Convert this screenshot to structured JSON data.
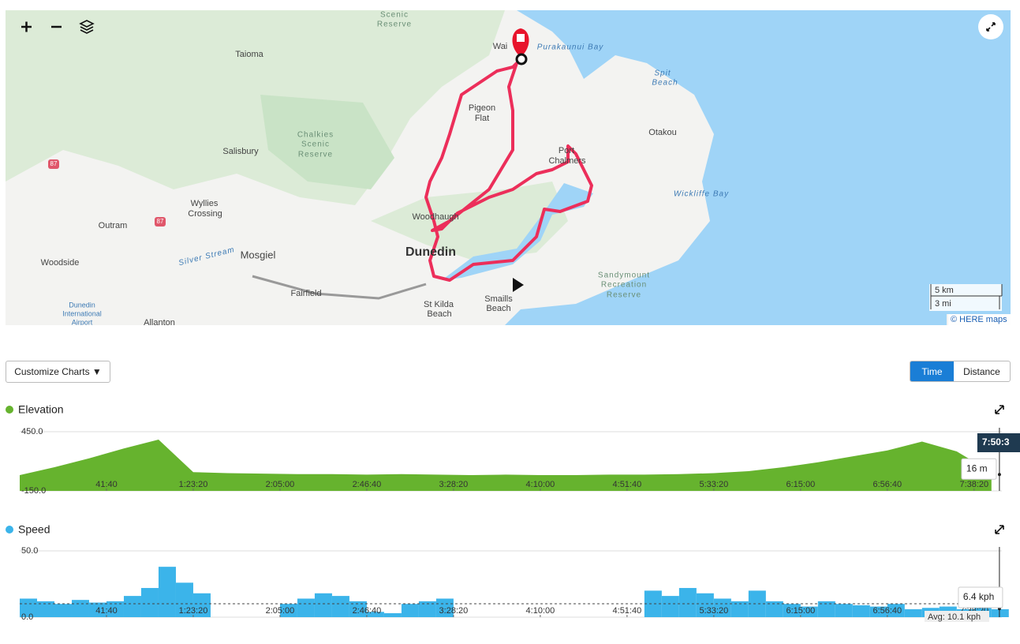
{
  "map": {
    "labels": [
      "Scenic",
      "Reserve",
      "Taioma",
      "Wai",
      "Purakaunui Bay",
      "Spit",
      "Beach",
      "Pigeon",
      "Flat",
      "Otakou",
      "Chalkies",
      "Scenic",
      "Reserve",
      "Salisbury",
      "87",
      "87",
      "Port",
      "Chalmers",
      "Wickliffe Bay",
      "Wyllies",
      "Crossing",
      "Outram",
      "Woodhaugh",
      "Silver Stream",
      "Mosgiel",
      "Dunedin",
      "Woodside",
      "Sandymount",
      "Recreation",
      "Reserve",
      "Fairfield",
      "Dunedin",
      "International",
      "Airport",
      "St Kilda",
      "Beach",
      "Smaills",
      "Beach",
      "Allanton"
    ],
    "scale": [
      "5 km",
      "3 mi"
    ],
    "attribution": "© HERE maps"
  },
  "toolbar": {
    "customize": "Customize Charts ▼",
    "toggle": [
      "Time",
      "Distance"
    ]
  },
  "charts": [
    {
      "type": "area",
      "title": "Elevation",
      "color": "#66b32e",
      "x": [
        0,
        1000,
        2000,
        3000,
        4000,
        5000,
        6000,
        7000,
        8000,
        9000,
        10000,
        11000,
        12000,
        13000,
        14000,
        15000,
        16000,
        17000,
        18000,
        19000,
        20000,
        21000,
        22000,
        23000,
        24000,
        25000,
        26000,
        27000,
        28000
      ],
      "values": [
        10,
        90,
        180,
        280,
        370,
        40,
        30,
        25,
        20,
        20,
        15,
        20,
        15,
        10,
        15,
        10,
        10,
        15,
        15,
        20,
        30,
        50,
        90,
        140,
        200,
        260,
        350,
        250,
        40
      ],
      "xlim": [
        0,
        28300
      ],
      "ylim": [
        -150,
        450
      ],
      "yticks": [
        {
          "value": 450,
          "label": "450.0"
        },
        {
          "value": -150,
          "label": "-150.0"
        }
      ],
      "xticks": [
        {
          "value": 2500,
          "label": "41:40"
        },
        {
          "value": 5000,
          "label": "1:23:20"
        },
        {
          "value": 7500,
          "label": "2:05:00"
        },
        {
          "value": 10000,
          "label": "2:46:40"
        },
        {
          "value": 12500,
          "label": "3:28:20"
        },
        {
          "value": 15000,
          "label": "4:10:00"
        },
        {
          "value": 17500,
          "label": "4:51:40"
        },
        {
          "value": 20000,
          "label": "5:33:20"
        },
        {
          "value": 22500,
          "label": "6:15:00"
        },
        {
          "value": 25000,
          "label": "6:56:40"
        },
        {
          "value": 27500,
          "label": "7:38:20"
        }
      ],
      "cursor": {
        "value": 28230,
        "label": "7:50:3"
      },
      "tooltip": {
        "value": 16,
        "label": "16 m"
      }
    },
    {
      "type": "bar",
      "title": "Speed",
      "color": "#3bb4ea",
      "x": [
        0,
        500,
        1000,
        1500,
        2000,
        2500,
        3000,
        3500,
        4000,
        4500,
        5000,
        5500,
        6000,
        6500,
        7000,
        7500,
        8000,
        8500,
        9000,
        9500,
        10000,
        10500,
        11000,
        11500,
        12000,
        12500,
        13000,
        13500,
        14000,
        14500,
        15000,
        15500,
        16000,
        16500,
        17000,
        17500,
        18000,
        18500,
        19000,
        19500,
        20000,
        20500,
        21000,
        21500,
        22000,
        22500,
        23000,
        23500,
        24000,
        24500,
        25000,
        25500,
        26000,
        26500,
        27000,
        27500,
        28000
      ],
      "values": [
        14,
        12,
        10,
        13,
        11,
        12,
        16,
        22,
        38,
        26,
        18,
        0,
        0,
        0,
        0,
        10,
        14,
        18,
        16,
        12,
        4,
        3,
        10,
        12,
        14,
        0,
        0,
        0,
        0,
        0,
        0,
        0,
        0,
        0,
        0,
        0,
        20,
        16,
        22,
        18,
        14,
        12,
        20,
        12,
        10,
        8,
        12,
        10,
        9,
        8,
        10,
        6,
        7,
        8,
        6,
        12,
        6
      ],
      "xlim": [
        0,
        28300
      ],
      "ylim": [
        0,
        50
      ],
      "yticks": [
        {
          "value": 50,
          "label": "50.0"
        },
        {
          "value": 0,
          "label": "0.0"
        }
      ],
      "xticks": [
        {
          "value": 2500,
          "label": "41:40"
        },
        {
          "value": 5000,
          "label": "1:23:20"
        },
        {
          "value": 7500,
          "label": "2:05:00"
        },
        {
          "value": 10000,
          "label": "2:46:40"
        },
        {
          "value": 12500,
          "label": "3:28:20"
        },
        {
          "value": 15000,
          "label": "4:10:00"
        },
        {
          "value": 17500,
          "label": "4:51:40"
        },
        {
          "value": 20000,
          "label": "5:33:20"
        },
        {
          "value": 22500,
          "label": "6:15:00"
        },
        {
          "value": 25000,
          "label": "6:56:40"
        },
        {
          "value": 27500,
          "label": "7:38:20"
        }
      ],
      "cursor": {
        "value": 28230
      },
      "average": {
        "value": 10.1,
        "label": "Avg: 10.1 kph"
      },
      "tooltip": {
        "value": 6.4,
        "label": "6.4 kph"
      }
    }
  ]
}
